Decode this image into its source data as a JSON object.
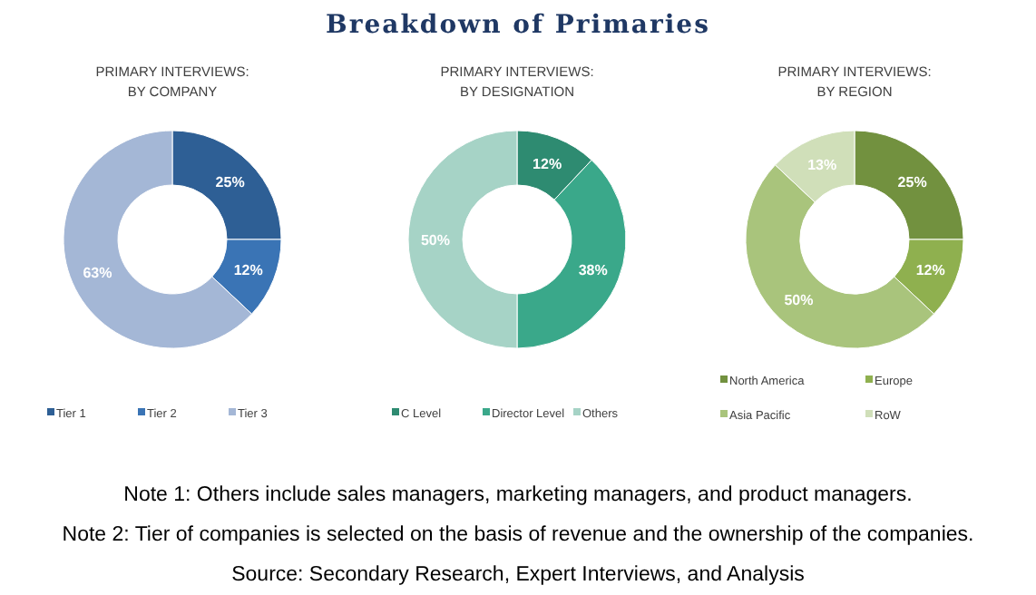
{
  "chart_data": [
    {
      "type": "other",
      "title": "Breakdown of Primaries",
      "annotations": [
        "Note 1: Others include sales managers, marketing managers, and product managers.",
        "Note 2: Tier of companies is selected on the basis of revenue and the ownership of the companies.",
        "Source: Secondary Research, Expert Interviews, and Analysis"
      ]
    },
    {
      "type": "donut",
      "title": "PRIMARY INTERVIEWS:\nBY COMPANY",
      "categories": [
        "Tier 1",
        "Tier 2",
        "Tier 3"
      ],
      "values": [
        25,
        12,
        63
      ],
      "value_labels": [
        "25%",
        "12%",
        "63%"
      ],
      "colors": [
        "#2e5f95",
        "#3a74b5",
        "#a4b7d6"
      ],
      "legend": "bottom"
    },
    {
      "type": "donut",
      "title": "PRIMARY INTERVIEWS:\nBY DESIGNATION",
      "categories": [
        "C Level",
        "Director Level",
        "Others"
      ],
      "values": [
        12,
        38,
        50
      ],
      "value_labels": [
        "12%",
        "38%",
        "50%"
      ],
      "colors": [
        "#2e8b71",
        "#3aa88a",
        "#a6d3c6"
      ],
      "legend": "bottom"
    },
    {
      "type": "donut",
      "title": "PRIMARY INTERVIEWS:\nBY REGION",
      "categories": [
        "North America",
        "Europe",
        "Asia Pacific",
        "RoW"
      ],
      "values": [
        25,
        12,
        50,
        13
      ],
      "value_labels": [
        "25%",
        "12%",
        "50%",
        "13%"
      ],
      "colors": [
        "#72913f",
        "#8fb04f",
        "#a9c47c",
        "#d0dfb9"
      ],
      "legend": "bottom"
    }
  ]
}
